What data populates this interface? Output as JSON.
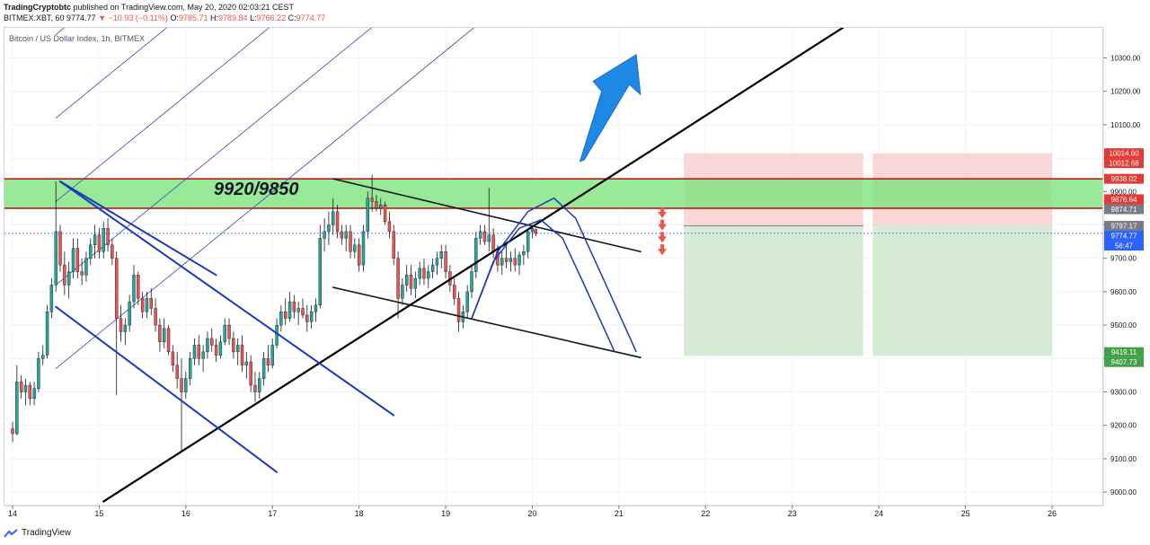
{
  "header": {
    "publisher": "TradingCryptobtc",
    "published_text": "published on TradingView.com, May 20, 2020 02:03:21 CEST",
    "symbol_line": "BITMEX:XBT, 60",
    "last": "9774.77",
    "change": "−10.93 (−0.11%)",
    "o_label": "O:",
    "o": "9785.71",
    "h_label": "H:",
    "h": "9789.84",
    "l_label": "L:",
    "l": "9766.22",
    "c_label": "C:",
    "c": "9774.77"
  },
  "chart_title": "Bitcoin / US Dollar Index, 1h, BITMEX",
  "zone_label": "9920/9850",
  "footer": {
    "brand": "TradingView"
  },
  "chart_data": {
    "type": "candlestick",
    "y_range": [
      8960,
      10390
    ],
    "x_range": [
      13.92,
      26.6
    ],
    "y_ticks": [
      9000,
      9100,
      9200,
      9300,
      9400,
      9500,
      9600,
      9700,
      9800,
      9900,
      10000,
      10100,
      10200,
      10300
    ],
    "y_tick_labels": [
      "9000.00",
      "9100.00",
      "9200.00",
      "9300.00",
      "9400.00",
      "9500.00",
      "9600.00",
      "9700.00",
      "9800.00",
      "9900.00",
      "10000.00",
      "10100.00",
      "10200.00",
      "10300.00"
    ],
    "x_ticks": [
      14,
      15,
      16,
      17,
      18,
      19,
      20,
      21,
      22,
      23,
      24,
      25,
      26
    ],
    "x_tick_labels": [
      "14",
      "15",
      "16",
      "17",
      "18",
      "19",
      "20",
      "21",
      "22",
      "23",
      "24",
      "25",
      "26"
    ],
    "price_badges": [
      {
        "value": 10014.6,
        "label": "10014.60",
        "color": "#e53935"
      },
      {
        "value": 10012.68,
        "label": "10012.68",
        "color": "#e53935"
      },
      {
        "value": 9938.02,
        "label": "9938.02",
        "color": "#e53935"
      },
      {
        "value": 9876.64,
        "label": "9876.64",
        "color": "#e53935"
      },
      {
        "value": 9874.71,
        "label": "9874.71",
        "color": "#787b86"
      },
      {
        "value": 9797.17,
        "label": "9797.17",
        "color": "#787b86"
      },
      {
        "value": 9774.77,
        "label": "9774.77",
        "color": "#2962ff"
      },
      {
        "value": 9751,
        "label": "56:47",
        "color": "#2962ff"
      },
      {
        "value": 9419.11,
        "label": "9419.11",
        "color": "#43a047"
      },
      {
        "value": 9407.73,
        "label": "9407.73",
        "color": "#43a047"
      }
    ],
    "candles": [
      [
        14.0,
        9190,
        9210,
        9150,
        9175
      ],
      [
        14.05,
        9175,
        9380,
        9170,
        9330
      ],
      [
        14.1,
        9330,
        9350,
        9280,
        9300
      ],
      [
        14.15,
        9300,
        9340,
        9260,
        9320
      ],
      [
        14.2,
        9320,
        9330,
        9260,
        9280
      ],
      [
        14.25,
        9280,
        9330,
        9260,
        9310
      ],
      [
        14.3,
        9310,
        9420,
        9300,
        9400
      ],
      [
        14.35,
        9400,
        9440,
        9380,
        9410
      ],
      [
        14.4,
        9410,
        9560,
        9400,
        9540
      ],
      [
        14.45,
        9540,
        9640,
        9520,
        9620
      ],
      [
        14.5,
        9620,
        9930,
        9600,
        9780
      ],
      [
        14.55,
        9780,
        9800,
        9660,
        9680
      ],
      [
        14.6,
        9680,
        9720,
        9590,
        9620
      ],
      [
        14.65,
        9620,
        9690,
        9580,
        9660
      ],
      [
        14.7,
        9660,
        9760,
        9640,
        9730
      ],
      [
        14.75,
        9730,
        9760,
        9640,
        9660
      ],
      [
        14.8,
        9660,
        9700,
        9620,
        9650
      ],
      [
        14.85,
        9650,
        9720,
        9630,
        9700
      ],
      [
        14.9,
        9700,
        9760,
        9680,
        9740
      ],
      [
        14.95,
        9740,
        9800,
        9700,
        9770
      ],
      [
        15.0,
        9770,
        9790,
        9700,
        9720
      ],
      [
        15.05,
        9720,
        9810,
        9700,
        9790
      ],
      [
        15.1,
        9790,
        9820,
        9720,
        9740
      ],
      [
        15.15,
        9740,
        9760,
        9680,
        9700
      ],
      [
        15.2,
        9700,
        9720,
        9290,
        9520
      ],
      [
        15.25,
        9520,
        9560,
        9450,
        9480
      ],
      [
        15.3,
        9480,
        9520,
        9440,
        9500
      ],
      [
        15.35,
        9500,
        9590,
        9480,
        9570
      ],
      [
        15.4,
        9570,
        9680,
        9550,
        9650
      ],
      [
        15.45,
        9650,
        9660,
        9560,
        9580
      ],
      [
        15.5,
        9580,
        9600,
        9520,
        9540
      ],
      [
        15.55,
        9540,
        9600,
        9520,
        9580
      ],
      [
        15.6,
        9580,
        9610,
        9530,
        9550
      ],
      [
        15.65,
        9550,
        9580,
        9480,
        9500
      ],
      [
        15.7,
        9500,
        9520,
        9420,
        9450
      ],
      [
        15.75,
        9450,
        9520,
        9430,
        9490
      ],
      [
        15.8,
        9490,
        9500,
        9410,
        9420
      ],
      [
        15.85,
        9420,
        9440,
        9360,
        9380
      ],
      [
        15.9,
        9380,
        9420,
        9310,
        9340
      ],
      [
        15.95,
        9340,
        9400,
        9120,
        9300
      ],
      [
        16.0,
        9300,
        9360,
        9280,
        9340
      ],
      [
        16.05,
        9340,
        9420,
        9320,
        9400
      ],
      [
        16.1,
        9400,
        9460,
        9380,
        9440
      ],
      [
        16.15,
        9440,
        9470,
        9380,
        9400
      ],
      [
        16.2,
        9400,
        9440,
        9360,
        9420
      ],
      [
        16.25,
        9420,
        9480,
        9400,
        9460
      ],
      [
        16.3,
        9460,
        9490,
        9420,
        9440
      ],
      [
        16.35,
        9440,
        9460,
        9390,
        9410
      ],
      [
        16.4,
        9410,
        9470,
        9400,
        9450
      ],
      [
        16.45,
        9450,
        9520,
        9440,
        9500
      ],
      [
        16.5,
        9500,
        9520,
        9440,
        9460
      ],
      [
        16.55,
        9460,
        9480,
        9400,
        9420
      ],
      [
        16.6,
        9420,
        9460,
        9380,
        9440
      ],
      [
        16.65,
        9440,
        9470,
        9360,
        9380
      ],
      [
        16.7,
        9380,
        9420,
        9340,
        9390
      ],
      [
        16.75,
        9390,
        9410,
        9300,
        9320
      ],
      [
        16.8,
        9320,
        9360,
        9270,
        9300
      ],
      [
        16.85,
        9300,
        9360,
        9280,
        9340
      ],
      [
        16.9,
        9340,
        9420,
        9320,
        9400
      ],
      [
        16.95,
        9400,
        9440,
        9360,
        9380
      ],
      [
        17.0,
        9380,
        9460,
        9370,
        9440
      ],
      [
        17.05,
        9440,
        9520,
        9430,
        9500
      ],
      [
        17.1,
        9500,
        9560,
        9480,
        9540
      ],
      [
        17.15,
        9540,
        9580,
        9500,
        9520
      ],
      [
        17.2,
        9520,
        9600,
        9510,
        9570
      ],
      [
        17.25,
        9570,
        9590,
        9520,
        9540
      ],
      [
        17.3,
        9540,
        9570,
        9500,
        9550
      ],
      [
        17.35,
        9550,
        9580,
        9520,
        9530
      ],
      [
        17.4,
        9530,
        9560,
        9480,
        9510
      ],
      [
        17.45,
        9510,
        9560,
        9490,
        9540
      ],
      [
        17.5,
        9540,
        9580,
        9510,
        9560
      ],
      [
        17.55,
        9560,
        9800,
        9550,
        9760
      ],
      [
        17.6,
        9760,
        9820,
        9720,
        9780
      ],
      [
        17.65,
        9780,
        9840,
        9740,
        9800
      ],
      [
        17.7,
        9800,
        9880,
        9770,
        9840
      ],
      [
        17.75,
        9840,
        9860,
        9760,
        9780
      ],
      [
        17.8,
        9780,
        9800,
        9740,
        9760
      ],
      [
        17.85,
        9760,
        9800,
        9720,
        9780
      ],
      [
        17.9,
        9780,
        9800,
        9700,
        9720
      ],
      [
        17.95,
        9720,
        9760,
        9700,
        9740
      ],
      [
        18.0,
        9740,
        9760,
        9660,
        9680
      ],
      [
        18.05,
        9680,
        9800,
        9660,
        9780
      ],
      [
        18.1,
        9780,
        9900,
        9760,
        9880
      ],
      [
        18.15,
        9880,
        9950,
        9840,
        9870
      ],
      [
        18.2,
        9870,
        9890,
        9840,
        9850
      ],
      [
        18.25,
        9850,
        9880,
        9830,
        9860
      ],
      [
        18.3,
        9860,
        9870,
        9800,
        9810
      ],
      [
        18.35,
        9810,
        9840,
        9760,
        9780
      ],
      [
        18.4,
        9780,
        9800,
        9680,
        9700
      ],
      [
        18.45,
        9700,
        9720,
        9520,
        9580
      ],
      [
        18.5,
        9580,
        9640,
        9560,
        9620
      ],
      [
        18.55,
        9620,
        9680,
        9600,
        9650
      ],
      [
        18.6,
        9650,
        9680,
        9590,
        9610
      ],
      [
        18.65,
        9610,
        9660,
        9580,
        9640
      ],
      [
        18.7,
        9640,
        9690,
        9620,
        9670
      ],
      [
        18.75,
        9670,
        9700,
        9620,
        9640
      ],
      [
        18.8,
        9640,
        9680,
        9610,
        9660
      ],
      [
        18.85,
        9660,
        9700,
        9640,
        9680
      ],
      [
        18.9,
        9680,
        9720,
        9650,
        9700
      ],
      [
        18.95,
        9700,
        9740,
        9670,
        9720
      ],
      [
        19.0,
        9720,
        9740,
        9640,
        9660
      ],
      [
        19.05,
        9660,
        9680,
        9600,
        9620
      ],
      [
        19.1,
        9620,
        9640,
        9560,
        9580
      ],
      [
        19.15,
        9580,
        9600,
        9480,
        9510
      ],
      [
        19.2,
        9510,
        9560,
        9490,
        9540
      ],
      [
        19.25,
        9540,
        9620,
        9520,
        9600
      ],
      [
        19.3,
        9600,
        9680,
        9580,
        9660
      ],
      [
        19.35,
        9660,
        9780,
        9640,
        9760
      ],
      [
        19.4,
        9760,
        9800,
        9740,
        9780
      ],
      [
        19.45,
        9780,
        9800,
        9740,
        9750
      ],
      [
        19.5,
        9750,
        9910,
        9720,
        9770
      ],
      [
        19.55,
        9770,
        9790,
        9700,
        9720
      ],
      [
        19.6,
        9720,
        9740,
        9660,
        9680
      ],
      [
        19.65,
        9680,
        9720,
        9650,
        9700
      ],
      [
        19.7,
        9700,
        9740,
        9670,
        9690
      ],
      [
        19.75,
        9690,
        9720,
        9660,
        9700
      ],
      [
        19.8,
        9700,
        9730,
        9660,
        9680
      ],
      [
        19.85,
        9680,
        9720,
        9650,
        9710
      ],
      [
        19.9,
        9710,
        9740,
        9680,
        9720
      ],
      [
        19.95,
        9720,
        9790,
        9700,
        9780
      ],
      [
        20.0,
        9780,
        9800,
        9760,
        9790
      ],
      [
        20.04,
        9785.71,
        9789.84,
        9766.22,
        9774.77
      ]
    ],
    "zone": [
      9850,
      9920
    ],
    "short_position": {
      "entry": 9797.17,
      "stop": 10014.6,
      "target": 9407.73
    }
  }
}
